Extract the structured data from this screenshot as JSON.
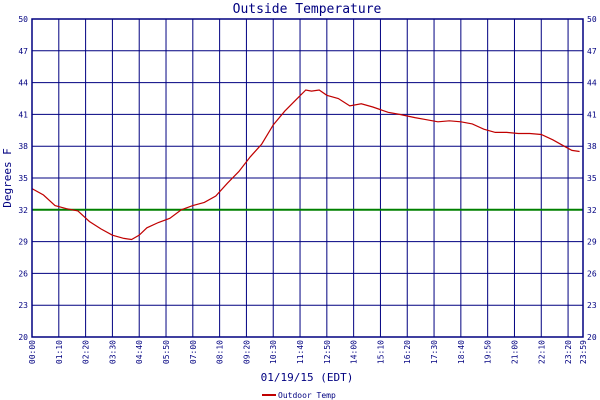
{
  "chart_data": {
    "type": "line",
    "title": "Outside Temperature",
    "ylabel": "Degrees F",
    "xlabel": "01/19/15 (EDT)",
    "ylim": [
      20,
      50
    ],
    "yticks": [
      20,
      23,
      26,
      29,
      32,
      35,
      38,
      41,
      44,
      47,
      50
    ],
    "xticks": [
      "00:00",
      "01:10",
      "02:20",
      "03:30",
      "04:40",
      "05:50",
      "07:00",
      "08:10",
      "09:20",
      "10:30",
      "11:40",
      "12:50",
      "14:00",
      "15:10",
      "16:20",
      "17:30",
      "18:40",
      "19:50",
      "21:00",
      "22:10",
      "23:20"
    ],
    "xticks_end": "23:59",
    "grid": true,
    "legend_position": "bottom-center",
    "reference_line": {
      "y": 32,
      "color": "#008000"
    },
    "series": [
      {
        "name": "Outdoor Temp",
        "color": "#c00000",
        "points": [
          [
            "00:00",
            34.0
          ],
          [
            "00:30",
            33.4
          ],
          [
            "01:00",
            32.4
          ],
          [
            "01:30",
            32.1
          ],
          [
            "02:00",
            31.9
          ],
          [
            "02:30",
            30.9
          ],
          [
            "03:00",
            30.2
          ],
          [
            "03:30",
            29.6
          ],
          [
            "04:00",
            29.3
          ],
          [
            "04:20",
            29.2
          ],
          [
            "04:40",
            29.6
          ],
          [
            "05:00",
            30.3
          ],
          [
            "05:30",
            30.8
          ],
          [
            "06:00",
            31.2
          ],
          [
            "06:30",
            32.0
          ],
          [
            "07:00",
            32.4
          ],
          [
            "07:30",
            32.7
          ],
          [
            "08:00",
            33.3
          ],
          [
            "08:30",
            34.5
          ],
          [
            "09:00",
            35.6
          ],
          [
            "09:30",
            37.0
          ],
          [
            "10:00",
            38.2
          ],
          [
            "10:30",
            40.0
          ],
          [
            "11:00",
            41.3
          ],
          [
            "11:30",
            42.4
          ],
          [
            "11:55",
            43.3
          ],
          [
            "12:10",
            43.2
          ],
          [
            "12:30",
            43.3
          ],
          [
            "12:50",
            42.8
          ],
          [
            "13:20",
            42.5
          ],
          [
            "13:50",
            41.8
          ],
          [
            "14:20",
            42.0
          ],
          [
            "14:50",
            41.7
          ],
          [
            "15:30",
            41.2
          ],
          [
            "16:00",
            41.0
          ],
          [
            "16:40",
            40.7
          ],
          [
            "17:10",
            40.5
          ],
          [
            "17:40",
            40.3
          ],
          [
            "18:10",
            40.4
          ],
          [
            "18:40",
            40.3
          ],
          [
            "19:10",
            40.1
          ],
          [
            "19:40",
            39.6
          ],
          [
            "20:10",
            39.3
          ],
          [
            "20:40",
            39.3
          ],
          [
            "21:10",
            39.2
          ],
          [
            "21:40",
            39.2
          ],
          [
            "22:10",
            39.1
          ],
          [
            "22:40",
            38.6
          ],
          [
            "23:10",
            38.0
          ],
          [
            "23:30",
            37.6
          ],
          [
            "23:50",
            37.5
          ]
        ]
      }
    ]
  }
}
